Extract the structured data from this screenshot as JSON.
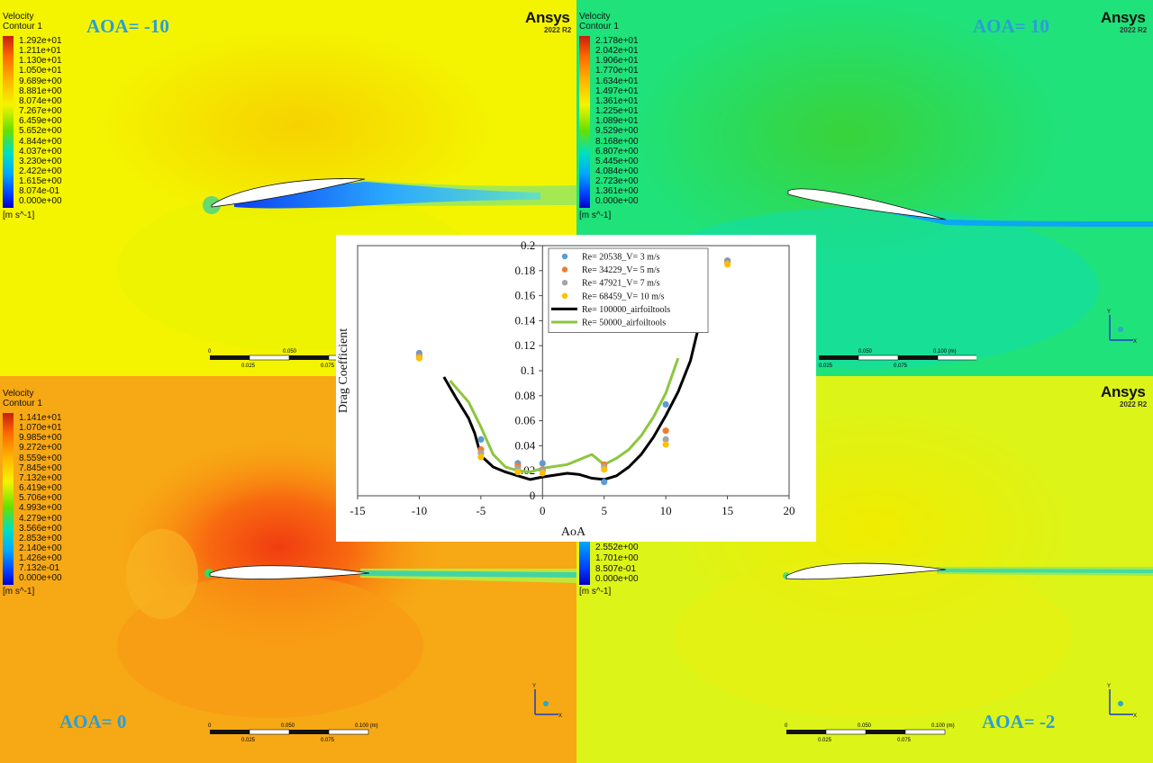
{
  "panels": {
    "top_left": {
      "aoa_label": "AOA= -10",
      "brand": "Ansys",
      "version": "2022 R2",
      "legend_title": [
        "Velocity",
        "Contour 1"
      ],
      "legend_values": [
        "1.292e+01",
        "1.211e+01",
        "1.130e+01",
        "1.050e+01",
        "9.689e+00",
        "8.881e+00",
        "8.074e+00",
        "7.267e+00",
        "6.459e+00",
        "5.652e+00",
        "4.844e+00",
        "4.037e+00",
        "3.230e+00",
        "2.422e+00",
        "1.615e+00",
        "8.074e-01",
        "0.000e+00"
      ],
      "unit": "[m s^-1]",
      "scale_top": [
        "0",
        "0.050"
      ],
      "scale_bottom": [
        "0.025",
        "0.075"
      ]
    },
    "top_right": {
      "aoa_label": "AOA= 10",
      "brand": "Ansys",
      "version": "2022 R2",
      "legend_title": [
        "Velocity",
        "Contour 1"
      ],
      "legend_values": [
        "2.178e+01",
        "2.042e+01",
        "1.906e+01",
        "1.770e+01",
        "1.634e+01",
        "1.497e+01",
        "1.361e+01",
        "1.225e+01",
        "1.089e+01",
        "9.529e+00",
        "8.168e+00",
        "6.807e+00",
        "5.445e+00",
        "4.084e+00",
        "2.723e+00",
        "1.361e+00",
        "0.000e+00"
      ],
      "unit": "[m s^-1]",
      "scale_top": [
        "0.050",
        "0.100  (m)"
      ],
      "scale_bottom": [
        "0.025",
        "0.075"
      ]
    },
    "bottom_left": {
      "aoa_label": "AOA= 0",
      "legend_title": [
        "Velocity",
        "Contour 1"
      ],
      "legend_values": [
        "1.141e+01",
        "1.070e+01",
        "9.985e+00",
        "9.272e+00",
        "8.559e+00",
        "7.845e+00",
        "7.132e+00",
        "6.419e+00",
        "5.706e+00",
        "4.993e+00",
        "4.279e+00",
        "3.566e+00",
        "2.853e+00",
        "2.140e+00",
        "1.426e+00",
        "7.132e-01",
        "0.000e+00"
      ],
      "unit": "[m s^-1]",
      "scale_top": [
        "0",
        "0.050",
        "0.100  (m)"
      ],
      "scale_bottom": [
        "0.025",
        "0.075"
      ]
    },
    "bottom_right": {
      "aoa_label": "AOA= -2",
      "brand": "Ansys",
      "version": "2022 R2",
      "legend_values": [
        "2.552e+00",
        "1.701e+00",
        "8.507e-01",
        "0.000e+00"
      ],
      "unit": "[m s^-1]",
      "scale_top": [
        "0",
        "0.050",
        "0.100  (m)"
      ],
      "scale_bottom": [
        "0.025",
        "0.075"
      ]
    }
  },
  "chart_data": {
    "type": "scatter",
    "xlabel": "AoA",
    "ylabel": "Drag Coefficient",
    "xlim": [
      -15,
      20
    ],
    "ylim": [
      0,
      0.2
    ],
    "xticks": [
      -15,
      -10,
      -5,
      0,
      5,
      10,
      15,
      20
    ],
    "yticks": [
      0,
      0.02,
      0.04,
      0.06,
      0.08,
      0.1,
      0.12,
      0.14,
      0.16,
      0.18,
      0.2
    ],
    "ytick_labels": [
      "0",
      "0.02",
      "0.04",
      "0.06",
      "0.08",
      "0.1",
      "0.12",
      "0.14",
      "0.16",
      "0.18",
      "0.2"
    ],
    "legend_position": "top-center",
    "series": [
      {
        "name": "Re= 20538_V= 3 m/s",
        "kind": "points",
        "color": "#5b9bd5",
        "points": [
          [
            -10,
            0.114
          ],
          [
            -5,
            0.045
          ],
          [
            -2,
            0.026
          ],
          [
            0,
            0.026
          ],
          [
            5,
            0.011
          ],
          [
            10,
            0.073
          ],
          [
            15,
            0.188
          ]
        ]
      },
      {
        "name": "Re= 34229_V= 5 m/s",
        "kind": "points",
        "color": "#ed7d31",
        "points": [
          [
            -10,
            0.112
          ],
          [
            -5,
            0.037
          ],
          [
            -2,
            0.024
          ],
          [
            0,
            0.021
          ],
          [
            5,
            0.025
          ],
          [
            10,
            0.052
          ],
          [
            15,
            0.187
          ]
        ]
      },
      {
        "name": "Re= 47921_V= 7 m/s",
        "kind": "points",
        "color": "#a5a5a5",
        "points": [
          [
            -10,
            0.111
          ],
          [
            -5,
            0.034
          ],
          [
            -2,
            0.022
          ],
          [
            0,
            0.02
          ],
          [
            5,
            0.023
          ],
          [
            10,
            0.045
          ],
          [
            15,
            0.186
          ]
        ]
      },
      {
        "name": "Re= 68459_V= 10 m/s",
        "kind": "points",
        "color": "#ffc000",
        "points": [
          [
            -10,
            0.11
          ],
          [
            -5,
            0.031
          ],
          [
            -2,
            0.019
          ],
          [
            0,
            0.018
          ],
          [
            5,
            0.021
          ],
          [
            10,
            0.041
          ],
          [
            15,
            0.185
          ]
        ]
      },
      {
        "name": "Re= 100000_airfoiltools",
        "kind": "line",
        "color": "#000000",
        "points": [
          [
            -8,
            0.095
          ],
          [
            -7,
            0.078
          ],
          [
            -6,
            0.062
          ],
          [
            -5.5,
            0.05
          ],
          [
            -5,
            0.032
          ],
          [
            -4,
            0.023
          ],
          [
            -3,
            0.019
          ],
          [
            -2,
            0.016
          ],
          [
            -1,
            0.013
          ],
          [
            0,
            0.015
          ],
          [
            2,
            0.018
          ],
          [
            3,
            0.017
          ],
          [
            4,
            0.014
          ],
          [
            5,
            0.013
          ],
          [
            6,
            0.016
          ],
          [
            7,
            0.023
          ],
          [
            8,
            0.033
          ],
          [
            9,
            0.047
          ],
          [
            10,
            0.064
          ],
          [
            11,
            0.083
          ],
          [
            12,
            0.108
          ],
          [
            13,
            0.149
          ]
        ]
      },
      {
        "name": "Re= 50000_airfoiltools",
        "kind": "line",
        "color": "#8cc63f",
        "points": [
          [
            -7.5,
            0.092
          ],
          [
            -6,
            0.075
          ],
          [
            -5,
            0.055
          ],
          [
            -4,
            0.033
          ],
          [
            -3,
            0.023
          ],
          [
            -2,
            0.02
          ],
          [
            -1,
            0.019
          ],
          [
            0,
            0.022
          ],
          [
            2,
            0.025
          ],
          [
            3,
            0.029
          ],
          [
            4,
            0.033
          ],
          [
            5,
            0.025
          ],
          [
            6,
            0.03
          ],
          [
            7,
            0.037
          ],
          [
            8,
            0.048
          ],
          [
            9,
            0.063
          ],
          [
            10,
            0.082
          ],
          [
            11,
            0.11
          ]
        ]
      }
    ]
  }
}
